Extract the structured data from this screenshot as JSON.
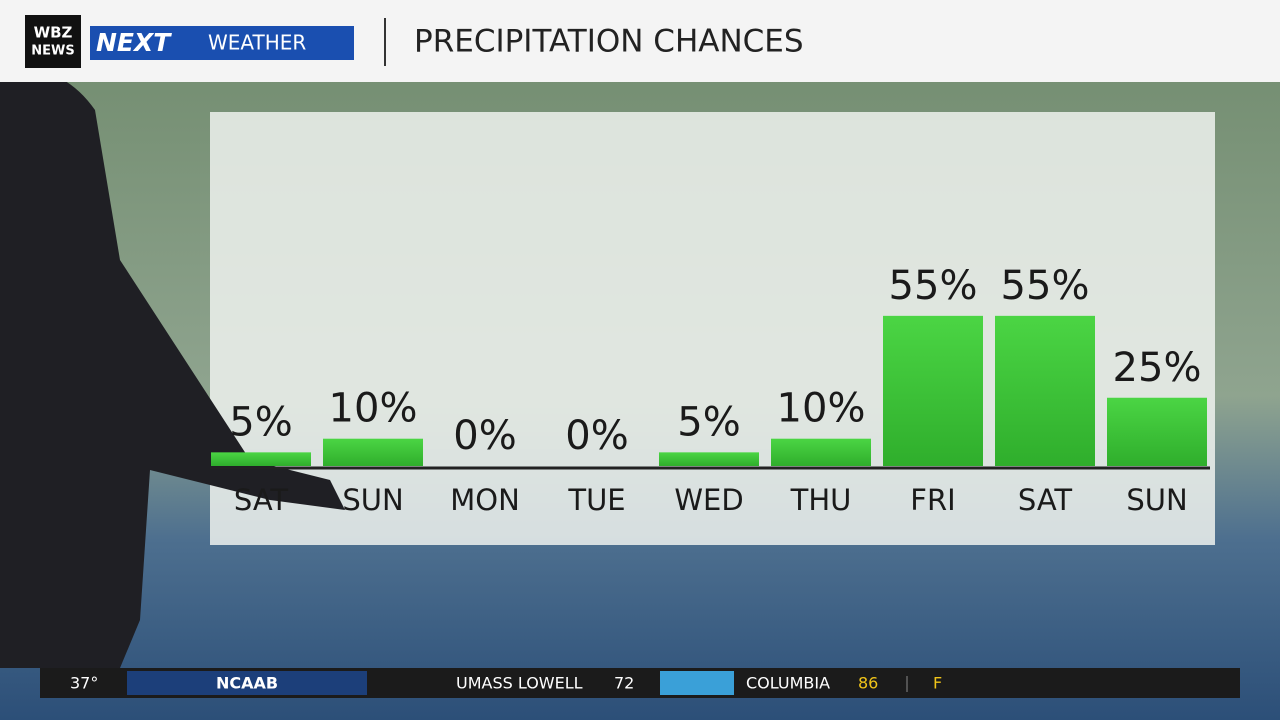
{
  "header": {
    "logo_top": "WBZ",
    "logo_bottom": "NEWS",
    "brand": "NEXT",
    "brand_sub": "WEATHER"
  },
  "chart_data": {
    "type": "bar",
    "title": "PRECIPITATION CHANCES",
    "categories": [
      "SAT",
      "SUN",
      "MON",
      "TUE",
      "WED",
      "THU",
      "FRI",
      "SAT",
      "SUN"
    ],
    "values": [
      5,
      10,
      0,
      0,
      5,
      10,
      55,
      55,
      25
    ],
    "value_labels": [
      "5%",
      "10%",
      "0%",
      "0%",
      "5%",
      "10%",
      "55%",
      "55%",
      "25%"
    ],
    "color": "#3fc93a"
  },
  "ticker": {
    "temp": "37°",
    "league": "NCAAB",
    "team1": "UMASS LOWELL",
    "score1": "72",
    "team2": "COLUMBIA",
    "score2": "86",
    "status": "F"
  }
}
